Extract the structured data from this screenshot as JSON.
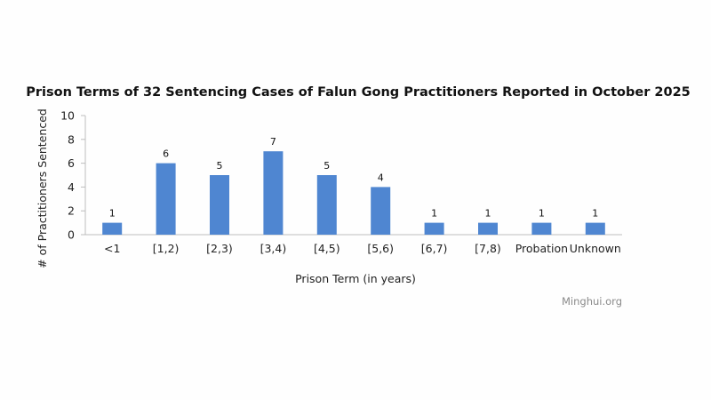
{
  "source_label": "Minghui.org",
  "colors": {
    "bar": "#4f86d1",
    "axis": "#bdbdbd",
    "background": "#fefefe"
  },
  "chart_data": {
    "type": "bar",
    "title": "Prison Terms of 32 Sentencing Cases of Falun Gong Practitioners Reported in October 2025",
    "xlabel": "Prison Term (in years)",
    "ylabel": "# of Practitioners Sentenced",
    "categories": [
      "<1",
      "[1,2)",
      "[2,3)",
      "[3,4)",
      "[4,5)",
      "[5,6)",
      "[6,7)",
      "[7,8)",
      "Probation",
      "Unknown"
    ],
    "values": [
      1,
      6,
      5,
      7,
      5,
      4,
      1,
      1,
      1,
      1
    ],
    "ylim": [
      0,
      10
    ],
    "yticks": [
      0,
      2,
      4,
      6,
      8,
      10
    ],
    "grid": false,
    "legend": "none"
  }
}
